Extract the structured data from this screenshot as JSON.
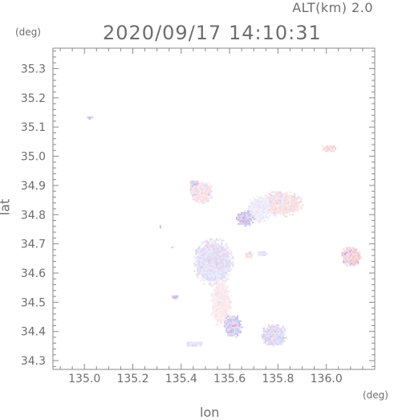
{
  "header": {
    "altitude_label": "ALT(km) 2.0",
    "timestamp": "2020/09/17 14:10:31"
  },
  "chart_data": {
    "type": "scatter",
    "xlabel": "lon",
    "ylabel": "lat",
    "x_unit": "(deg)",
    "y_unit": "(deg)",
    "xlim": [
      134.87,
      136.2
    ],
    "ylim": [
      34.27,
      35.37
    ],
    "x_ticks": [
      135.0,
      135.2,
      135.4,
      135.6,
      135.8,
      136.0
    ],
    "x_tick_labels": [
      "135.0",
      "135.2",
      "135.4",
      "135.6",
      "135.8",
      "136.0"
    ],
    "y_ticks": [
      34.3,
      34.4,
      34.5,
      34.6,
      34.7,
      34.8,
      34.9,
      35.0,
      35.1,
      35.2,
      35.3
    ],
    "y_tick_labels": [
      "34.3",
      "34.4",
      "34.5",
      "34.6",
      "34.7",
      "34.8",
      "34.9",
      "35.0",
      "35.1",
      "35.2",
      "35.3"
    ],
    "colors": {
      "positive": "#e8505a",
      "negative": "#5a5ae8",
      "axis": "#8a8a8a"
    },
    "echo_regions": [
      {
        "lon": 135.02,
        "lat": 35.135,
        "rx": 0.015,
        "ry": 0.006,
        "v": -0.6
      },
      {
        "lon": 136.01,
        "lat": 35.03,
        "rx": 0.035,
        "ry": 0.012,
        "v": 0.4
      },
      {
        "lon": 135.81,
        "lat": 34.84,
        "rx": 0.09,
        "ry": 0.045,
        "v": 0.3
      },
      {
        "lon": 135.72,
        "lat": 34.82,
        "rx": 0.05,
        "ry": 0.05,
        "v": -0.2
      },
      {
        "lon": 135.66,
        "lat": 34.79,
        "rx": 0.04,
        "ry": 0.03,
        "v": -0.5
      },
      {
        "lon": 135.48,
        "lat": 34.88,
        "rx": 0.05,
        "ry": 0.04,
        "v": 0.3
      },
      {
        "lon": 135.45,
        "lat": 34.91,
        "rx": 0.02,
        "ry": 0.012,
        "v": -0.5
      },
      {
        "lon": 135.53,
        "lat": 34.64,
        "rx": 0.085,
        "ry": 0.085,
        "v": -0.3
      },
      {
        "lon": 135.56,
        "lat": 34.5,
        "rx": 0.045,
        "ry": 0.085,
        "v": 0.2
      },
      {
        "lon": 135.61,
        "lat": 34.42,
        "rx": 0.04,
        "ry": 0.04,
        "v": -0.5
      },
      {
        "lon": 135.78,
        "lat": 34.39,
        "rx": 0.055,
        "ry": 0.04,
        "v": -0.4
      },
      {
        "lon": 136.1,
        "lat": 34.66,
        "rx": 0.045,
        "ry": 0.035,
        "v": 0.45
      },
      {
        "lon": 135.37,
        "lat": 34.52,
        "rx": 0.015,
        "ry": 0.009,
        "v": -0.6
      },
      {
        "lon": 135.45,
        "lat": 34.36,
        "rx": 0.04,
        "ry": 0.01,
        "v": -0.3
      },
      {
        "lon": 135.31,
        "lat": 34.762,
        "rx": 0.006,
        "ry": 0.008,
        "v": 0.7
      },
      {
        "lon": 135.36,
        "lat": 34.69,
        "rx": 0.008,
        "ry": 0.006,
        "v": -0.4
      },
      {
        "lon": 135.68,
        "lat": 34.665,
        "rx": 0.02,
        "ry": 0.015,
        "v": 0.3
      },
      {
        "lon": 135.73,
        "lat": 34.67,
        "rx": 0.02,
        "ry": 0.01,
        "v": -0.3
      }
    ]
  }
}
